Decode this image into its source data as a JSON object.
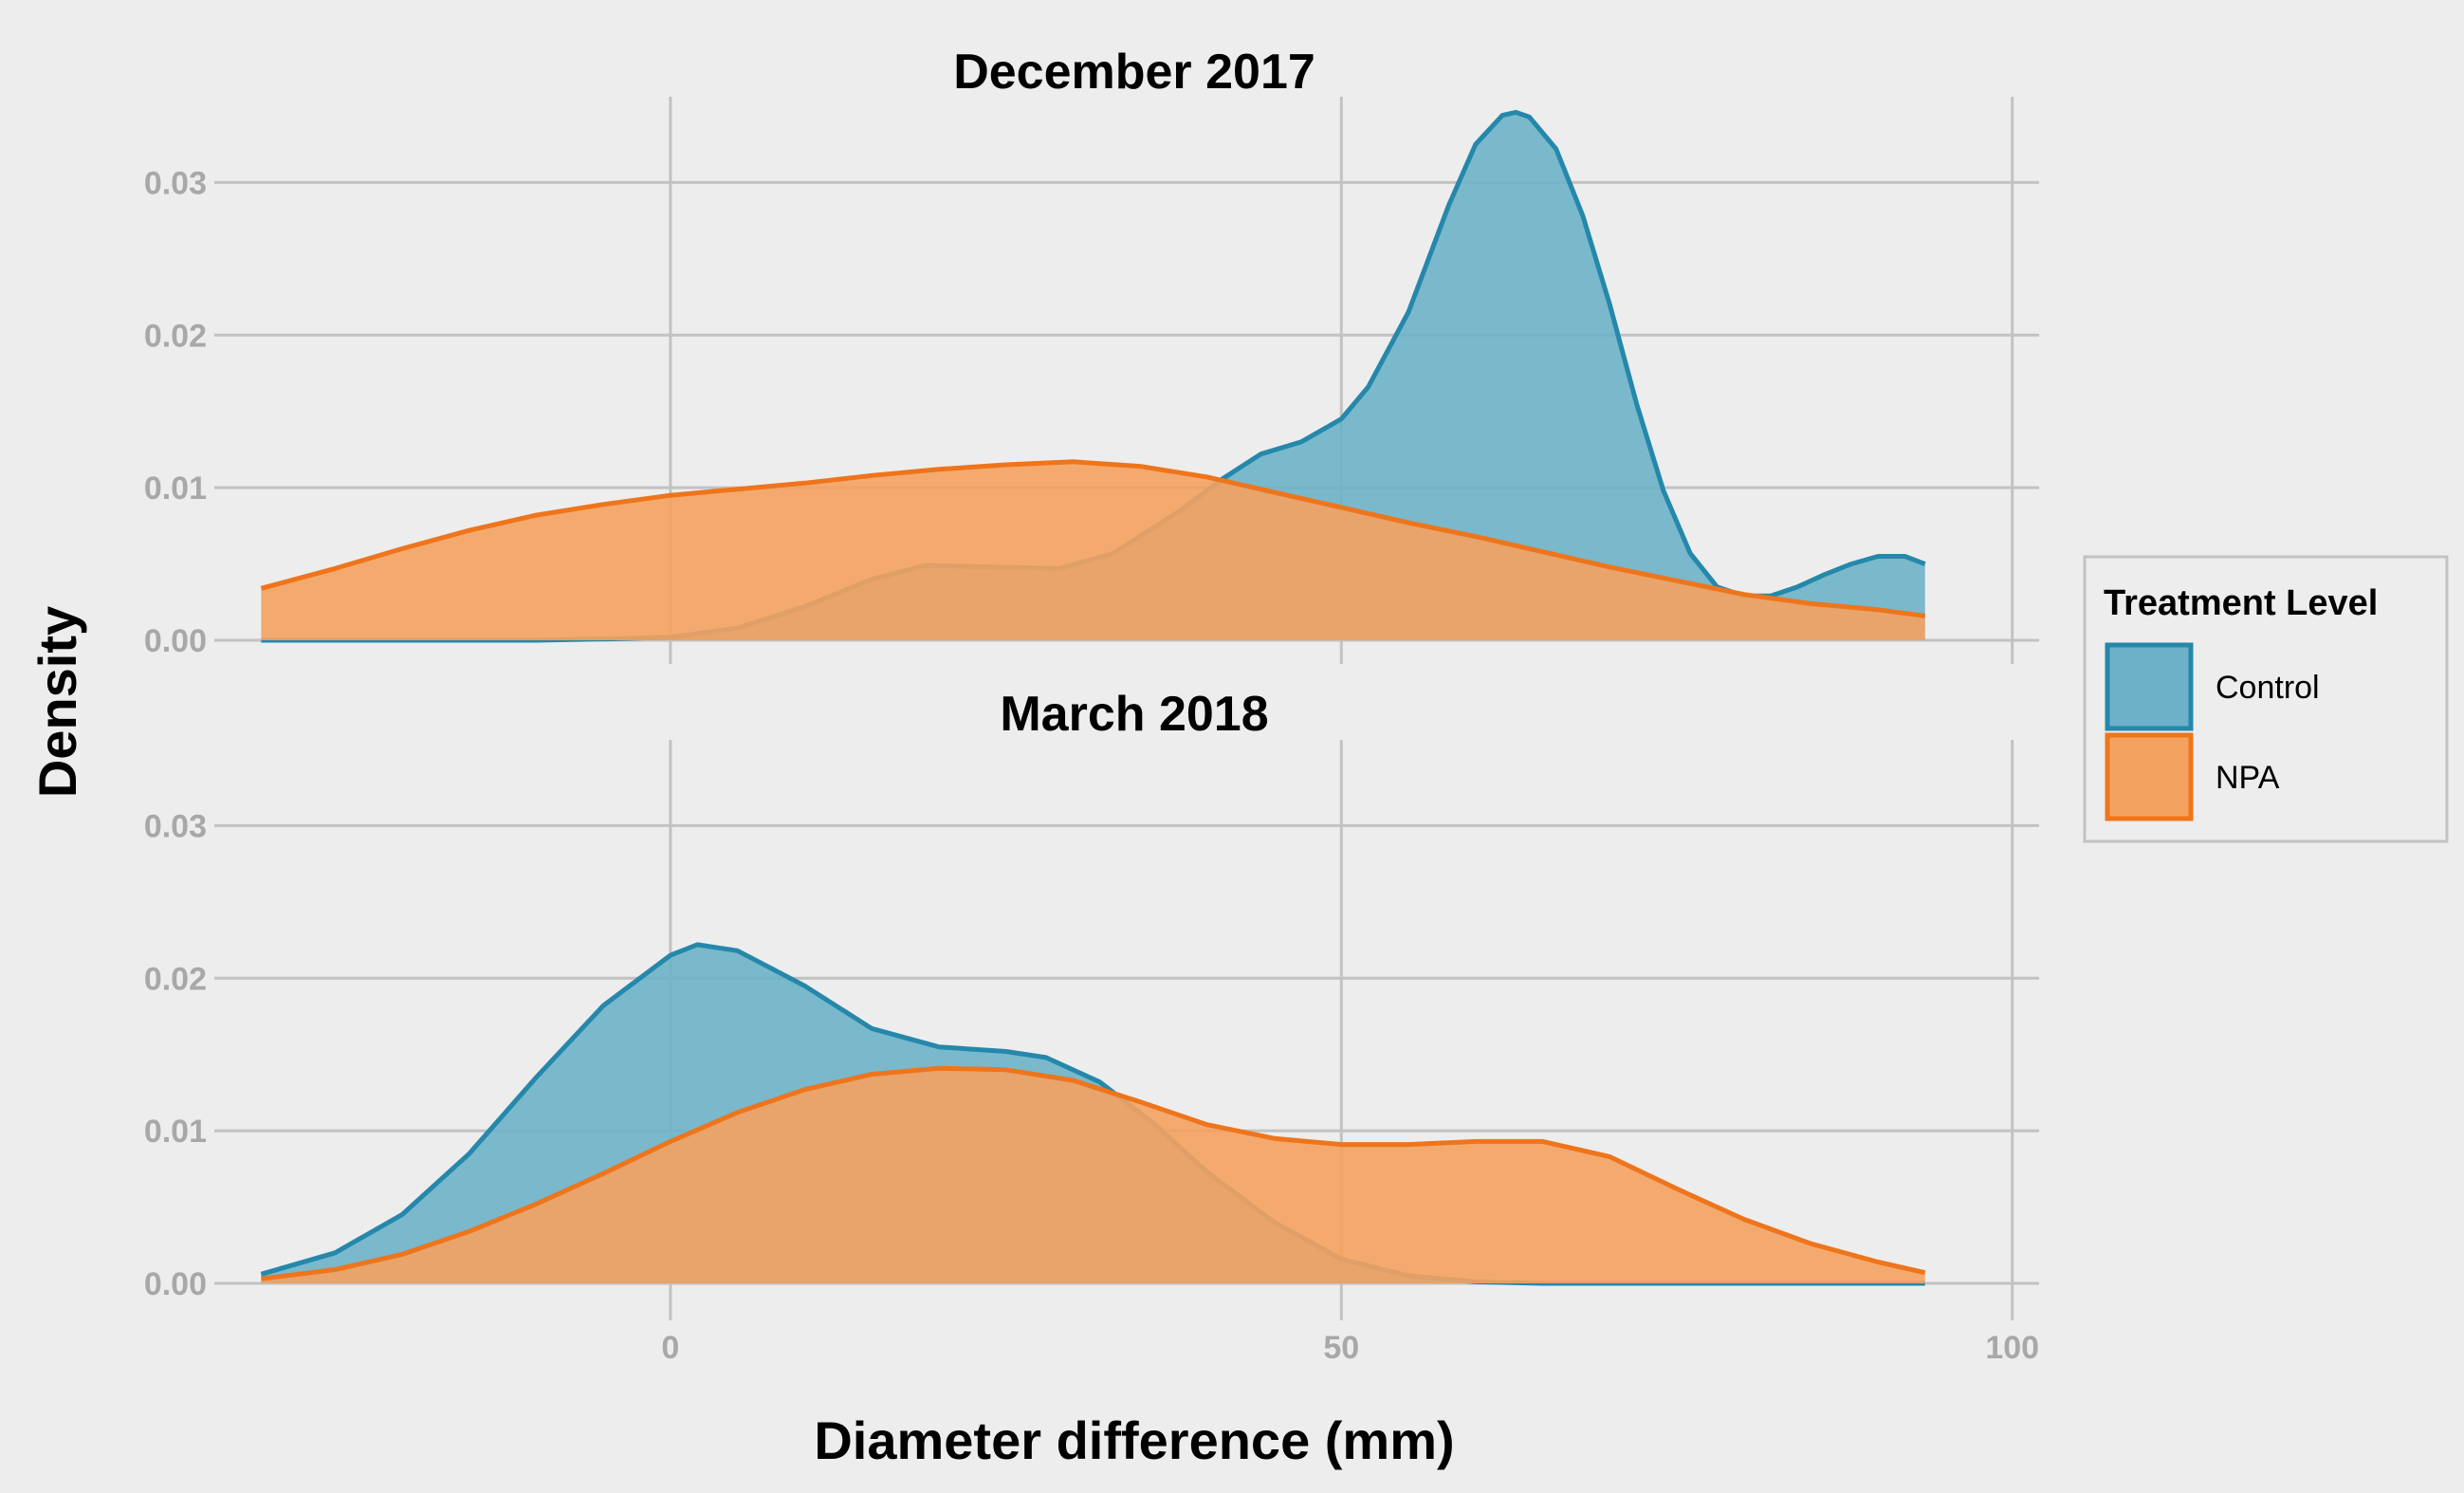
{
  "chart_data": {
    "type": "area",
    "subtype": "density",
    "xlabel": "Diameter difference (mm)",
    "ylabel": "Density",
    "xlim": [
      -33,
      102
    ],
    "ylim": [
      0,
      0.0345
    ],
    "x_ticks": [
      0,
      50,
      100
    ],
    "y_ticks": [
      0.0,
      0.01,
      0.02,
      0.03
    ],
    "x_tick_labels": [
      "0",
      "50",
      "100"
    ],
    "y_tick_labels": [
      "0.00",
      "0.01",
      "0.02",
      "0.03"
    ],
    "grid": true,
    "legend": {
      "title": "Treatment Level",
      "position": "right",
      "entries": [
        {
          "label": "Control",
          "fill": "#6db1c8",
          "stroke": "#2588ab"
        },
        {
          "label": "NPA",
          "fill": "#f4a25f",
          "stroke": "#ee751c"
        }
      ]
    },
    "panels": [
      {
        "title": "December 2017",
        "series": [
          {
            "name": "Control",
            "x": [
              -30.5,
              -20,
              -10,
              -4,
              0,
              5,
              10,
              15,
              19,
              24,
              29,
              33,
              38,
              41,
              44,
              47,
              50,
              52,
              55,
              58,
              60,
              62,
              63,
              64,
              66,
              68,
              70,
              72,
              74,
              76,
              78,
              80,
              82,
              84,
              86,
              88,
              90,
              92,
              93.5
            ],
            "y": [
              0,
              0,
              0,
              0.0001,
              0.0002,
              0.0008,
              0.0022,
              0.004,
              0.0049,
              0.0048,
              0.0047,
              0.0057,
              0.0085,
              0.0105,
              0.0122,
              0.013,
              0.0145,
              0.0166,
              0.0215,
              0.0285,
              0.0325,
              0.0344,
              0.0346,
              0.0343,
              0.0322,
              0.0278,
              0.022,
              0.0155,
              0.0098,
              0.0057,
              0.0035,
              0.0029,
              0.0029,
              0.0035,
              0.0043,
              0.005,
              0.0055,
              0.0055,
              0.005
            ]
          },
          {
            "name": "NPA",
            "x": [
              -30.5,
              -25,
              -20,
              -15,
              -10,
              -5,
              0,
              5,
              10,
              15,
              20,
              25,
              30,
              35,
              40,
              45,
              50,
              55,
              60,
              65,
              70,
              75,
              80,
              85,
              90,
              93.5
            ],
            "y": [
              0.0034,
              0.0047,
              0.006,
              0.0072,
              0.0082,
              0.0089,
              0.0095,
              0.0099,
              0.0103,
              0.0108,
              0.0112,
              0.0115,
              0.0117,
              0.0114,
              0.0107,
              0.0097,
              0.0087,
              0.0077,
              0.0068,
              0.0058,
              0.0048,
              0.0039,
              0.003,
              0.0024,
              0.002,
              0.0016
            ]
          }
        ]
      },
      {
        "title": "March 2018",
        "series": [
          {
            "name": "Control",
            "x": [
              -30.5,
              -25,
              -20,
              -15,
              -10,
              -5,
              0,
              2,
              5,
              10,
              15,
              20,
              25,
              28,
              32,
              36,
              40,
              45,
              50,
              55,
              60,
              65,
              70,
              80,
              93.5
            ],
            "y": [
              0.0006,
              0.002,
              0.0045,
              0.0085,
              0.0135,
              0.0182,
              0.0215,
              0.0222,
              0.0218,
              0.0195,
              0.0167,
              0.0155,
              0.0152,
              0.0148,
              0.0132,
              0.0105,
              0.0073,
              0.004,
              0.0016,
              0.0005,
              0.0001,
              0,
              0,
              0,
              0
            ]
          },
          {
            "name": "NPA",
            "x": [
              -30.5,
              -25,
              -20,
              -15,
              -10,
              -5,
              0,
              5,
              10,
              15,
              20,
              25,
              30,
              35,
              40,
              45,
              50,
              55,
              60,
              65,
              70,
              75,
              80,
              85,
              90,
              93.5
            ],
            "y": [
              0.0003,
              0.0009,
              0.0019,
              0.0034,
              0.0052,
              0.0072,
              0.0093,
              0.0112,
              0.0127,
              0.0137,
              0.0141,
              0.014,
              0.0133,
              0.0119,
              0.0104,
              0.0095,
              0.0091,
              0.0091,
              0.0093,
              0.0093,
              0.0083,
              0.0062,
              0.0042,
              0.0026,
              0.0014,
              0.0007
            ]
          }
        ]
      }
    ]
  }
}
